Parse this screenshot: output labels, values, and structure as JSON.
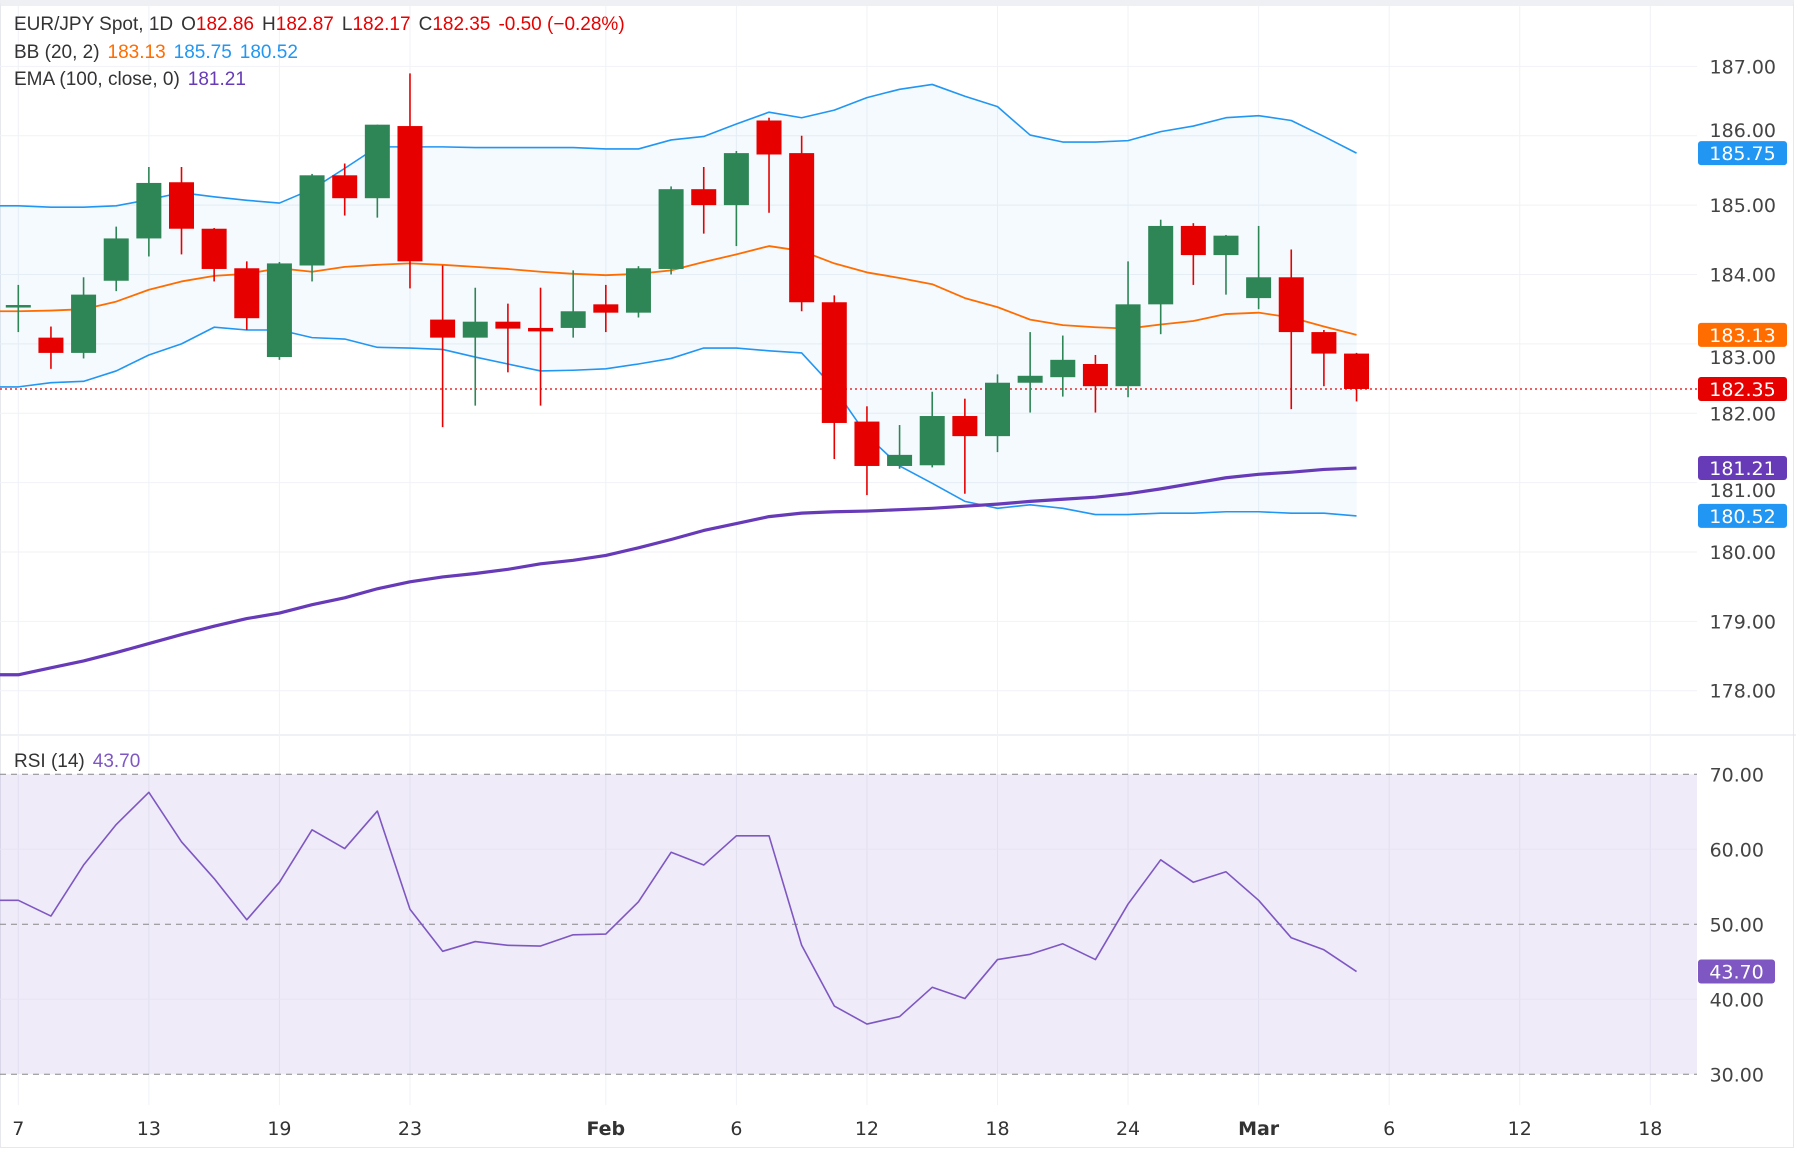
{
  "legend": {
    "symbol": "EUR/JPY Spot, 1D",
    "open_label": "O",
    "open": "182.86",
    "high_label": "H",
    "high": "182.87",
    "low_label": "L",
    "low": "182.17",
    "close_label": "C",
    "close": "182.35",
    "change": "-0.50 (−0.28%)",
    "bb_label": "BB (20, 2)",
    "bb_mid": "183.13",
    "bb_upper": "185.75",
    "bb_lower": "180.52",
    "ema_label": "EMA (100, close, 0)",
    "ema": "181.21",
    "rsi_label": "RSI (14)",
    "rsi": "43.70"
  },
  "colors": {
    "up": "#2e8555",
    "down": "#e60000",
    "bb_band": "#2196f3",
    "bb_basis": "#ff6d00",
    "ema": "#673ab7",
    "rsi": "#7e57c2",
    "last_price": "#e60000"
  },
  "chart_data": [
    {
      "type": "candlestick",
      "title": "EUR/JPY Spot, 1D",
      "ylim": [
        177.5,
        187.2
      ],
      "yticks": [
        "178.00",
        "179.00",
        "180.00",
        "181.00",
        "182.00",
        "183.00",
        "184.00",
        "185.00",
        "186.00",
        "187.00"
      ],
      "xticks": [
        {
          "label": "7",
          "bar": 0
        },
        {
          "label": "13",
          "bar": 4
        },
        {
          "label": "19",
          "bar": 8
        },
        {
          "label": "23",
          "bar": 12
        },
        {
          "label": "Feb",
          "bar": 18
        },
        {
          "label": "6",
          "bar": 22
        },
        {
          "label": "12",
          "bar": 26
        },
        {
          "label": "18",
          "bar": 30
        },
        {
          "label": "24",
          "bar": 34
        },
        {
          "label": "Mar",
          "bar": 38
        },
        {
          "label": "6",
          "bar": 42
        },
        {
          "label": "12",
          "bar": 46
        },
        {
          "label": "18",
          "bar": 50
        }
      ],
      "grid": true,
      "ohlc": [
        [
          183.53,
          183.85,
          183.17,
          183.56
        ],
        [
          183.09,
          183.25,
          182.64,
          182.87
        ],
        [
          182.87,
          183.96,
          182.79,
          183.71
        ],
        [
          183.91,
          184.69,
          183.76,
          184.52
        ],
        [
          184.52,
          185.55,
          184.26,
          185.32
        ],
        [
          185.33,
          185.55,
          184.29,
          184.66
        ],
        [
          184.66,
          184.67,
          183.9,
          184.08
        ],
        [
          184.09,
          184.19,
          183.2,
          183.37
        ],
        [
          182.81,
          184.18,
          182.77,
          184.16
        ],
        [
          184.13,
          185.45,
          183.9,
          185.43
        ],
        [
          185.43,
          185.6,
          184.85,
          185.1
        ],
        [
          185.1,
          186.16,
          184.82,
          186.16
        ],
        [
          186.14,
          186.9,
          183.8,
          184.19
        ],
        [
          183.35,
          184.13,
          181.8,
          183.09
        ],
        [
          183.09,
          183.81,
          182.11,
          183.32
        ],
        [
          183.32,
          183.58,
          182.59,
          183.22
        ],
        [
          183.23,
          183.81,
          182.11,
          183.18
        ],
        [
          183.23,
          184.06,
          183.09,
          183.47
        ],
        [
          183.57,
          183.85,
          183.17,
          183.45
        ],
        [
          183.45,
          184.12,
          183.38,
          184.09
        ],
        [
          184.08,
          185.27,
          184.0,
          185.23
        ],
        [
          185.23,
          185.55,
          184.59,
          185.0
        ],
        [
          185.0,
          185.78,
          184.41,
          185.75
        ],
        [
          186.22,
          186.26,
          184.89,
          185.73
        ],
        [
          185.75,
          186.0,
          183.47,
          183.6
        ],
        [
          183.6,
          183.7,
          181.34,
          181.86
        ],
        [
          181.88,
          182.1,
          180.82,
          181.24
        ],
        [
          181.24,
          181.83,
          181.2,
          181.4
        ],
        [
          181.25,
          182.31,
          181.22,
          181.96
        ],
        [
          181.96,
          182.21,
          180.84,
          181.67
        ],
        [
          181.67,
          182.56,
          181.44,
          182.44
        ],
        [
          182.44,
          183.17,
          182.01,
          182.54
        ],
        [
          182.52,
          183.12,
          182.24,
          182.77
        ],
        [
          182.71,
          182.84,
          182.01,
          182.39
        ],
        [
          182.39,
          184.19,
          182.23,
          183.57
        ],
        [
          183.57,
          184.79,
          183.14,
          184.7
        ],
        [
          184.7,
          184.74,
          183.85,
          184.28
        ],
        [
          184.28,
          184.57,
          183.71,
          184.56
        ],
        [
          183.66,
          184.7,
          183.5,
          183.96
        ],
        [
          183.96,
          184.36,
          182.06,
          183.17
        ],
        [
          183.17,
          183.2,
          182.39,
          182.86
        ],
        [
          182.86,
          182.87,
          182.17,
          182.35
        ]
      ],
      "bb_upper": [
        184.99,
        184.97,
        184.97,
        184.99,
        185.08,
        185.18,
        185.12,
        185.07,
        185.03,
        185.23,
        185.53,
        185.84,
        185.84,
        185.84,
        185.83,
        185.83,
        185.83,
        185.83,
        185.81,
        185.81,
        185.94,
        185.99,
        186.17,
        186.34,
        186.26,
        186.37,
        186.55,
        186.67,
        186.74,
        186.57,
        186.42,
        186.01,
        185.91,
        185.91,
        185.93,
        186.06,
        186.14,
        186.26,
        186.29,
        186.22,
        185.99,
        185.75
      ],
      "bb_basis": [
        183.47,
        183.48,
        183.5,
        183.61,
        183.78,
        183.9,
        183.98,
        184.01,
        184.09,
        184.04,
        184.11,
        184.14,
        184.16,
        184.14,
        184.11,
        184.08,
        184.04,
        184.01,
        183.99,
        184.01,
        184.06,
        184.18,
        184.29,
        184.41,
        184.34,
        184.16,
        184.03,
        183.95,
        183.86,
        183.66,
        183.53,
        183.35,
        183.27,
        183.24,
        183.22,
        183.28,
        183.33,
        183.43,
        183.45,
        183.38,
        183.25,
        183.13
      ],
      "bb_lower": [
        182.38,
        182.44,
        182.46,
        182.61,
        182.84,
        183.0,
        183.24,
        183.2,
        183.2,
        183.09,
        183.07,
        182.95,
        182.94,
        182.92,
        182.81,
        182.71,
        182.61,
        182.62,
        182.64,
        182.71,
        182.79,
        182.94,
        182.94,
        182.9,
        182.87,
        182.36,
        181.68,
        181.24,
        180.99,
        180.73,
        180.63,
        180.68,
        180.63,
        180.54,
        180.54,
        180.56,
        180.56,
        180.58,
        180.58,
        180.56,
        180.56,
        180.52
      ],
      "ema": [
        178.23,
        178.33,
        178.43,
        178.55,
        178.68,
        178.81,
        178.93,
        179.04,
        179.12,
        179.24,
        179.34,
        179.47,
        179.57,
        179.64,
        179.69,
        179.75,
        179.83,
        179.88,
        179.95,
        180.06,
        180.18,
        180.31,
        180.41,
        180.51,
        180.56,
        180.58,
        180.59,
        180.61,
        180.63,
        180.66,
        180.69,
        180.73,
        180.76,
        180.79,
        180.84,
        180.91,
        180.99,
        181.07,
        181.12,
        181.15,
        181.19,
        181.21
      ],
      "last_price": 182.35,
      "price_tags": [
        {
          "value": 185.75,
          "label": "185.75",
          "color": "#2196f3"
        },
        {
          "value": 183.13,
          "label": "183.13",
          "color": "#ff6d00"
        },
        {
          "value": 182.35,
          "label": "182.35",
          "color": "#e60000"
        },
        {
          "value": 181.21,
          "label": "181.21",
          "color": "#673ab7"
        },
        {
          "value": 180.52,
          "label": "180.52",
          "color": "#2196f3"
        }
      ]
    },
    {
      "type": "line",
      "title": "RSI (14)",
      "ylim": [
        30,
        70
      ],
      "yticks": [
        "30.00",
        "40.00",
        "50.00",
        "60.00",
        "70.00"
      ],
      "levels": [
        70,
        50,
        30
      ],
      "values": [
        53.2,
        51.1,
        57.9,
        63.3,
        67.6,
        61.0,
        56.1,
        50.6,
        55.6,
        62.6,
        60.1,
        65.1,
        52.0,
        46.4,
        47.7,
        47.2,
        47.1,
        48.6,
        48.7,
        53.0,
        59.6,
        57.9,
        61.8,
        61.8,
        47.2,
        39.1,
        36.7,
        37.7,
        41.6,
        40.1,
        45.3,
        46.0,
        47.4,
        45.3,
        52.7,
        58.6,
        55.6,
        57.0,
        53.2,
        48.2,
        46.6,
        43.7
      ],
      "last_tag": {
        "value": 43.7,
        "label": "43.70",
        "color": "#7e57c2"
      }
    }
  ]
}
